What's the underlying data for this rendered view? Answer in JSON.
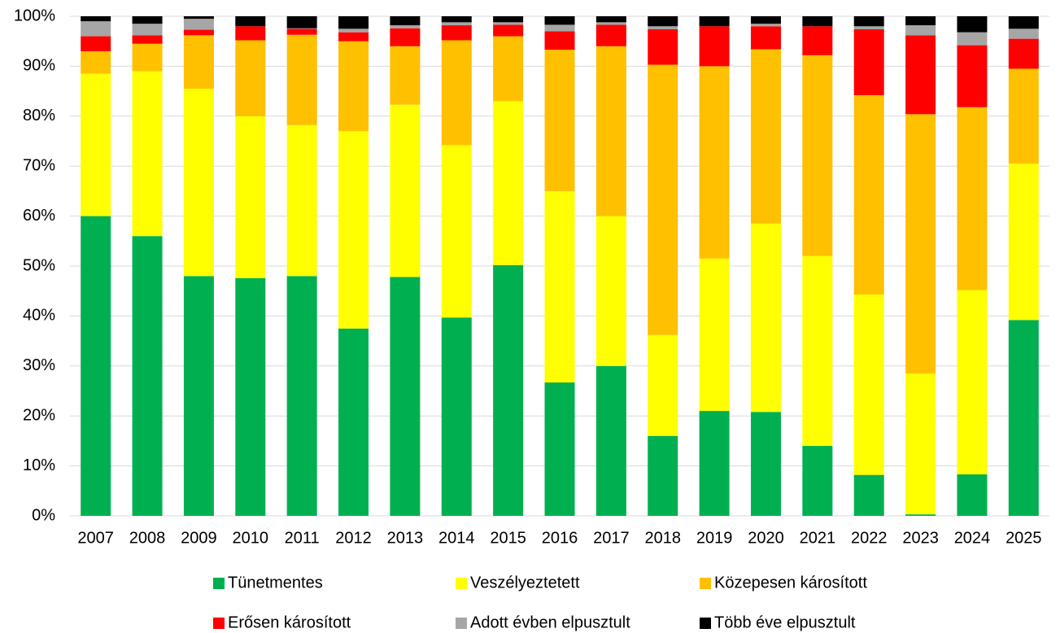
{
  "chart_data": {
    "type": "stacked_bar",
    "categories": [
      "2007",
      "2008",
      "2009",
      "2010",
      "2011",
      "2012",
      "2013",
      "2014",
      "2015",
      "2016",
      "2017",
      "2018",
      "2019",
      "2020",
      "2021",
      "2022",
      "2023",
      "2024",
      "2025"
    ],
    "series": [
      {
        "name": "Tünetmentes",
        "color": "#00b050",
        "values": [
          60,
          56,
          48,
          47.6,
          48,
          37.5,
          47.8,
          39.7,
          50.2,
          26.7,
          30,
          16,
          21,
          20.8,
          14,
          8.2,
          0.3,
          8.3,
          39.2
        ]
      },
      {
        "name": "Veszélyeztetett",
        "color": "#ffff00",
        "values": [
          28.5,
          33,
          37.5,
          32.4,
          30.2,
          39.5,
          34.5,
          34.5,
          32.8,
          38.3,
          30,
          20.2,
          30.5,
          37.7,
          38,
          36.1,
          28.2,
          36.9,
          31.3
        ]
      },
      {
        "name": "Közepesen károsított",
        "color": "#ffc000",
        "values": [
          4.5,
          5.5,
          10.7,
          15.2,
          18.1,
          18,
          11.7,
          21,
          13,
          28.3,
          34,
          54.1,
          38.5,
          34.9,
          40.2,
          39.9,
          51.9,
          36.6,
          19
        ]
      },
      {
        "name": "Erősen károsított",
        "color": "#ff0000",
        "values": [
          3,
          1.7,
          1.1,
          2.8,
          1.2,
          1.8,
          3.6,
          3,
          2.3,
          3.7,
          4.3,
          7.1,
          8,
          4.6,
          5.8,
          13.2,
          15.8,
          12.4,
          6
        ]
      },
      {
        "name": "Adott évben elpusztult",
        "color": "#a6a6a6",
        "values": [
          3,
          2.3,
          2.2,
          0,
          0.1,
          0.7,
          0.6,
          0.6,
          0.5,
          1.3,
          0.5,
          0.6,
          0,
          0.5,
          0,
          0.6,
          2,
          2.6,
          2
        ]
      },
      {
        "name": "Több éve elpusztult",
        "color": "#000000",
        "values": [
          1,
          1.5,
          0.5,
          2,
          2.4,
          2.5,
          1.8,
          1.2,
          1.2,
          1.7,
          1.2,
          2,
          2,
          1.5,
          2,
          2,
          1.8,
          3.2,
          2.5
        ]
      }
    ],
    "ylim": [
      0,
      100
    ],
    "yticks": [
      {
        "value": 0,
        "label": "0%"
      },
      {
        "value": 10,
        "label": "10%"
      },
      {
        "value": 20,
        "label": "20%"
      },
      {
        "value": 30,
        "label": "30%"
      },
      {
        "value": 40,
        "label": "40%"
      },
      {
        "value": 50,
        "label": "50%"
      },
      {
        "value": 60,
        "label": "60%"
      },
      {
        "value": 70,
        "label": "70%"
      },
      {
        "value": 80,
        "label": "80%"
      },
      {
        "value": 90,
        "label": "90%"
      },
      {
        "value": 100,
        "label": "100%"
      }
    ],
    "grid": true,
    "legend": "bottom"
  }
}
